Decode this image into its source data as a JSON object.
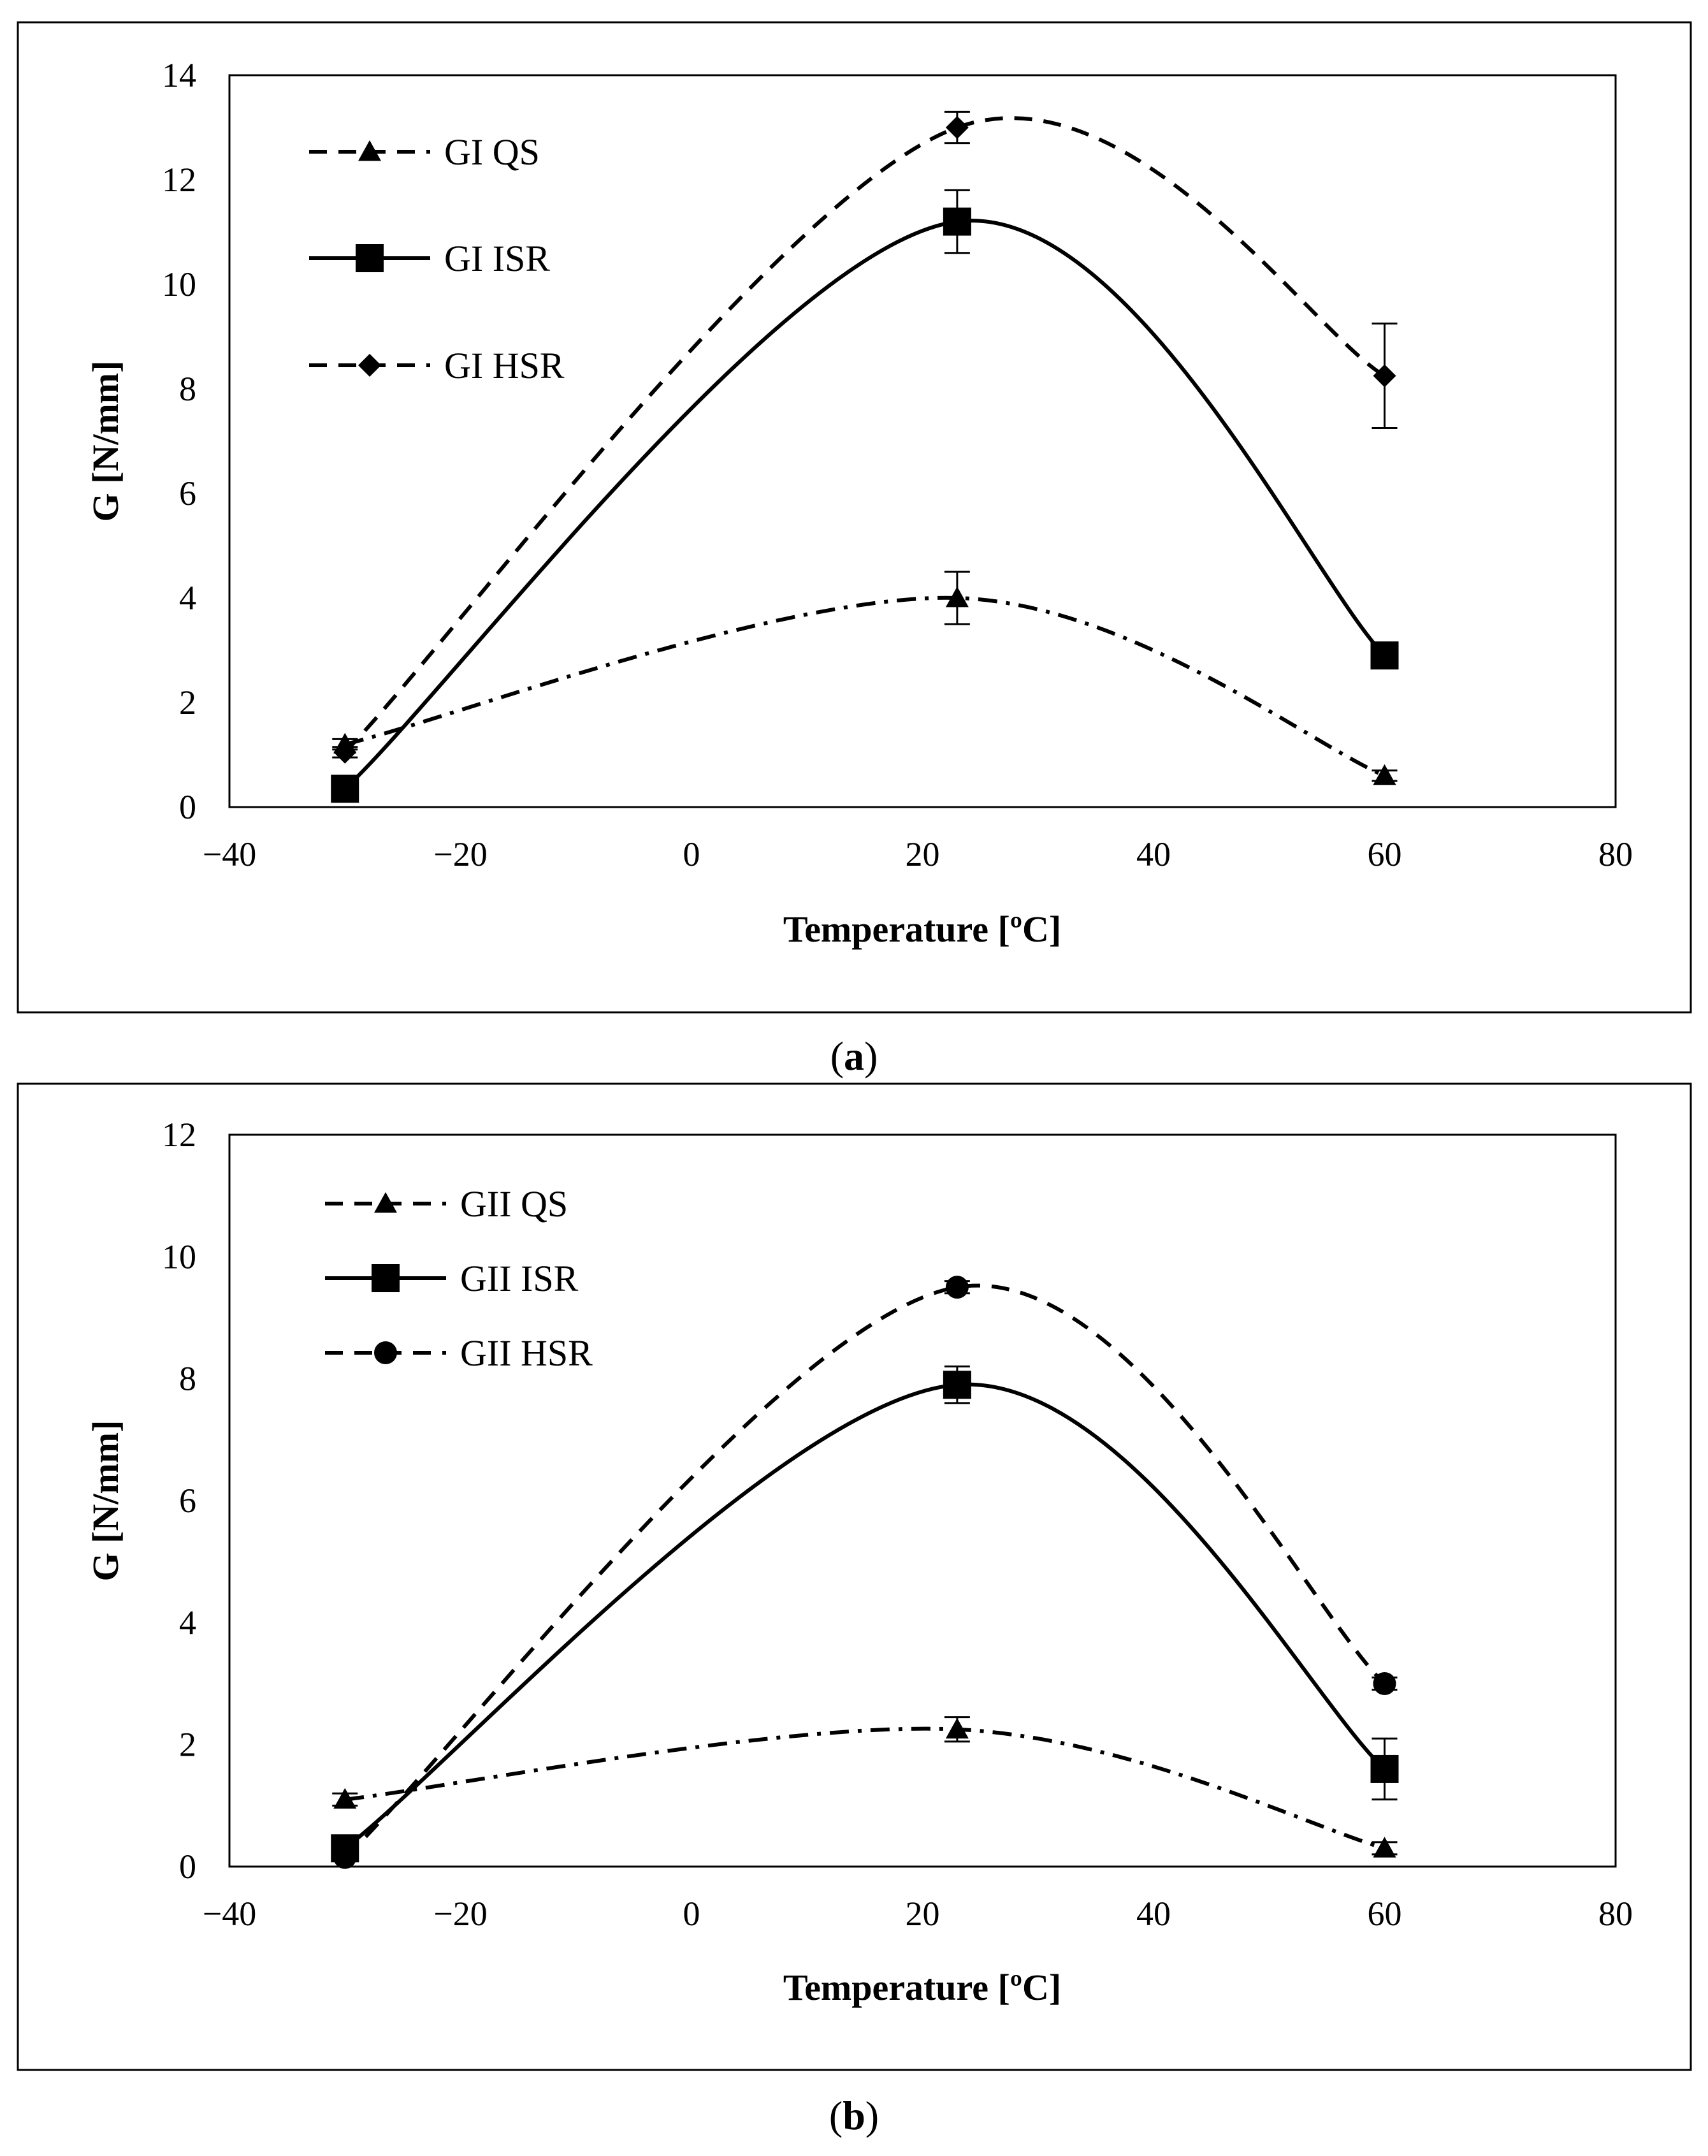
{
  "chart_data": [
    {
      "type": "line",
      "panel_label": "a",
      "xlabel": "Temperature [ºC]",
      "ylabel": "G [N/mm]",
      "xlim": [
        -40,
        80
      ],
      "ylim": [
        0,
        14
      ],
      "xticks": [
        "−40",
        "−20",
        "0",
        "20",
        "40",
        "60",
        "80"
      ],
      "yticks": [
        "0",
        "2",
        "4",
        "6",
        "8",
        "10",
        "12",
        "14"
      ],
      "x": [
        -30,
        23,
        60
      ],
      "series": [
        {
          "name": "GI QS",
          "marker": "triangle",
          "line": "dashdot",
          "values": [
            1.2,
            4.0,
            0.6
          ],
          "errors": [
            0.1,
            0.5,
            0.1
          ]
        },
        {
          "name": "GI ISR",
          "marker": "square",
          "line": "solid",
          "values": [
            0.35,
            11.2,
            2.9
          ],
          "errors": [
            0.05,
            0.6,
            0.1
          ]
        },
        {
          "name": "GI HSR",
          "marker": "diamond",
          "line": "dashed",
          "values": [
            1.05,
            13.0,
            8.25
          ],
          "errors": [
            0.1,
            0.3,
            1.0
          ]
        }
      ]
    },
    {
      "type": "line",
      "panel_label": "b",
      "xlabel": "Temperature [ºC]",
      "ylabel": "G [N/mm]",
      "xlim": [
        -40,
        80
      ],
      "ylim": [
        0,
        12
      ],
      "xticks": [
        "−40",
        "−20",
        "0",
        "20",
        "40",
        "60",
        "80"
      ],
      "yticks": [
        "0",
        "2",
        "4",
        "6",
        "8",
        "10",
        "12"
      ],
      "x": [
        -30,
        23,
        60
      ],
      "series": [
        {
          "name": "GII QS",
          "marker": "triangle",
          "line": "dashdot",
          "values": [
            1.1,
            2.25,
            0.3
          ],
          "errors": [
            0.1,
            0.2,
            0.1
          ]
        },
        {
          "name": "GII ISR",
          "marker": "square",
          "line": "solid",
          "values": [
            0.3,
            7.9,
            1.6
          ],
          "errors": [
            0.05,
            0.3,
            0.5
          ]
        },
        {
          "name": "GII HSR",
          "marker": "circle",
          "line": "dashed",
          "values": [
            0.15,
            9.5,
            3.0
          ],
          "errors": [
            0.05,
            0.1,
            0.1
          ]
        }
      ]
    }
  ]
}
